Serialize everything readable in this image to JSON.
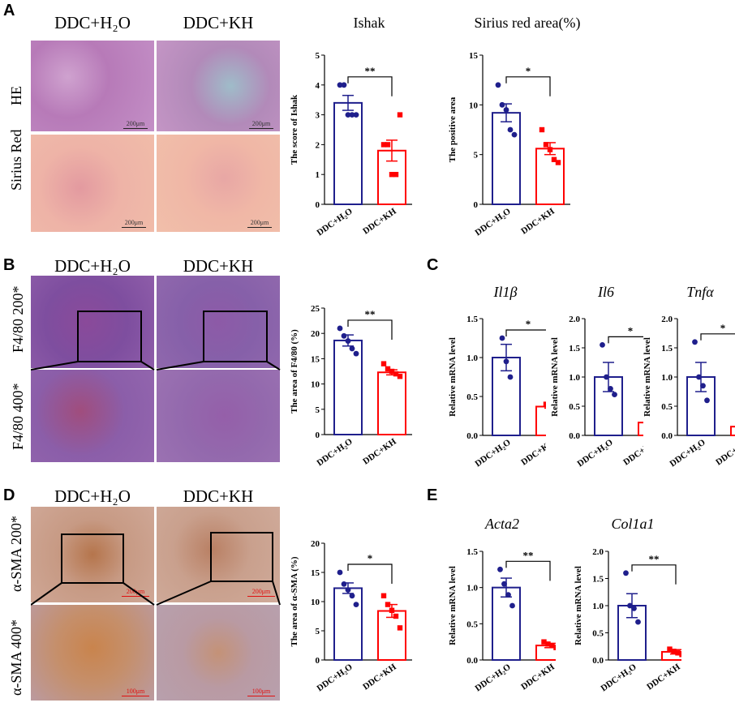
{
  "panels": {
    "A": {
      "label": "A",
      "col_headers": [
        "DDC+H₂O",
        "DDC+KH"
      ],
      "row_labels": [
        "HE",
        "Sirius Red"
      ],
      "scalebars": [
        "200μm",
        "200μm",
        "200μm",
        "200μm"
      ],
      "titles": [
        "Ishak",
        "Sirius red area(%)"
      ]
    },
    "B": {
      "label": "B",
      "col_headers": [
        "DDC+H₂O",
        "DDC+KH"
      ],
      "row_labels": [
        "F4/80 200*",
        "F4/80 400*"
      ]
    },
    "C": {
      "label": "C",
      "titles": [
        "Il1β",
        "Il6",
        "Tnfα"
      ]
    },
    "D": {
      "label": "D",
      "col_headers": [
        "DDC+H₂O",
        "DDC+KH"
      ],
      "row_labels": [
        "α-SMA 200*",
        "α-SMA 400*"
      ],
      "scalebars": [
        "200μm",
        "200μm",
        "100μm",
        "100μm"
      ]
    },
    "E": {
      "label": "E",
      "titles": [
        "Acta2",
        "Col1a1"
      ]
    }
  },
  "colors": {
    "group1": "#1f1f8c",
    "group2": "#ff0000"
  },
  "chart_data": [
    {
      "id": "ishak",
      "type": "bar",
      "categories": [
        "DDC+H₂O",
        "DDC+KH"
      ],
      "values": [
        3.4,
        1.8
      ],
      "errors": [
        0.25,
        0.35
      ],
      "points": [
        [
          4.0,
          4.0,
          3.0,
          3.0,
          3.0
        ],
        [
          2.0,
          2.0,
          1.0,
          1.0,
          3.0
        ]
      ],
      "ylabel": "The score of Ishak",
      "ylim": [
        0,
        5
      ],
      "yticks": [
        0,
        1,
        2,
        3,
        4,
        5
      ],
      "yticklabels": [
        "0",
        "1",
        "2",
        "3",
        "4",
        "5"
      ],
      "significance": "**"
    },
    {
      "id": "sirius",
      "type": "bar",
      "categories": [
        "DDC+H₂O",
        "DDC+KH"
      ],
      "values": [
        9.2,
        5.6
      ],
      "errors": [
        0.9,
        0.6
      ],
      "points": [
        [
          12.0,
          10.0,
          9.5,
          7.5,
          7.0
        ],
        [
          7.5,
          6.0,
          5.5,
          4.5,
          4.2
        ]
      ],
      "ylabel": "The positive area",
      "ylim": [
        0,
        15
      ],
      "yticks": [
        0,
        5,
        10,
        15
      ],
      "yticklabels": [
        "0",
        "5",
        "10",
        "15"
      ],
      "significance": "*"
    },
    {
      "id": "f480",
      "type": "bar",
      "categories": [
        "DDC+H₂O",
        "DDC+KH"
      ],
      "values": [
        18.6,
        12.3
      ],
      "errors": [
        1.1,
        0.5
      ],
      "points": [
        [
          21.0,
          19.5,
          18.5,
          17.0,
          16.0
        ],
        [
          14.0,
          13.0,
          12.5,
          12.0,
          11.5
        ]
      ],
      "ylabel": "The area of F4/80 (%)",
      "ylim": [
        0,
        25
      ],
      "yticks": [
        0,
        5,
        10,
        15,
        20,
        25
      ],
      "yticklabels": [
        "0",
        "5",
        "10",
        "15",
        "20",
        "25"
      ],
      "significance": "**"
    },
    {
      "id": "il1b",
      "type": "bar",
      "categories": [
        "DDC+H₂O",
        "DDC+KH"
      ],
      "values": [
        1.0,
        0.37
      ],
      "errors": [
        0.17,
        0.02
      ],
      "points": [
        [
          1.25,
          0.95,
          0.75
        ],
        [
          0.4,
          0.38,
          0.36
        ]
      ],
      "ylabel": "Relative mRNA level",
      "ylim": [
        0,
        1.5
      ],
      "yticks": [
        0,
        0.5,
        1.0,
        1.5
      ],
      "yticklabels": [
        "0.0",
        "0.5",
        "1.0",
        "1.5"
      ],
      "significance": "*"
    },
    {
      "id": "il6",
      "type": "bar",
      "categories": [
        "DDC+H₂O",
        "DDC+KH"
      ],
      "values": [
        1.0,
        0.22
      ],
      "errors": [
        0.25,
        0.07
      ],
      "points": [
        [
          1.55,
          1.0,
          0.8,
          0.7
        ],
        [
          0.35,
          0.25,
          0.18,
          0.12
        ]
      ],
      "ylabel": "Relative mRNA level",
      "ylim": [
        0,
        2.0
      ],
      "yticks": [
        0,
        0.5,
        1.0,
        1.5,
        2.0
      ],
      "yticklabels": [
        "0.0",
        "0.5",
        "1.0",
        "1.5",
        "2.0"
      ],
      "significance": "*"
    },
    {
      "id": "tnfa",
      "type": "bar",
      "categories": [
        "DDC+H₂O",
        "DDC+KH"
      ],
      "values": [
        1.0,
        0.15
      ],
      "errors": [
        0.25,
        0.08
      ],
      "points": [
        [
          1.6,
          1.0,
          0.85,
          0.6
        ],
        [
          0.35,
          0.12,
          0.08,
          0.05
        ]
      ],
      "ylabel": "Relative mRNA level",
      "ylim": [
        0,
        2.0
      ],
      "yticks": [
        0,
        0.5,
        1.0,
        1.5,
        2.0
      ],
      "yticklabels": [
        "0.0",
        "0.5",
        "1.0",
        "1.5",
        "2.0"
      ],
      "significance": "*"
    },
    {
      "id": "asma",
      "type": "bar",
      "categories": [
        "DDC+H₂O",
        "DDC+KH"
      ],
      "values": [
        12.3,
        8.4
      ],
      "errors": [
        0.9,
        1.1
      ],
      "points": [
        [
          15.0,
          13.0,
          12.0,
          11.0,
          9.5
        ],
        [
          11.0,
          9.5,
          8.5,
          7.5,
          5.5
        ]
      ],
      "ylabel": "The area of α-SMA (%)",
      "ylim": [
        0,
        20
      ],
      "yticks": [
        0,
        5,
        10,
        15,
        20
      ],
      "yticklabels": [
        "0",
        "5",
        "10",
        "15",
        "20"
      ],
      "significance": "*"
    },
    {
      "id": "acta2",
      "type": "bar",
      "categories": [
        "DDC+H₂O",
        "DDC+KH"
      ],
      "values": [
        1.0,
        0.2
      ],
      "errors": [
        0.13,
        0.03
      ],
      "points": [
        [
          1.25,
          1.05,
          0.9,
          0.75
        ],
        [
          0.25,
          0.22,
          0.2,
          0.17
        ]
      ],
      "ylabel": "Relative mRNA level",
      "ylim": [
        0,
        1.5
      ],
      "yticks": [
        0,
        0.5,
        1.0,
        1.5
      ],
      "yticklabels": [
        "0.0",
        "0.5",
        "1.0",
        "1.5"
      ],
      "significance": "**"
    },
    {
      "id": "col1a1",
      "type": "bar",
      "categories": [
        "DDC+H₂O",
        "DDC+KH"
      ],
      "values": [
        1.0,
        0.15
      ],
      "errors": [
        0.22,
        0.04
      ],
      "points": [
        [
          1.6,
          1.0,
          0.95,
          0.7
        ],
        [
          0.2,
          0.16,
          0.13,
          0.1
        ]
      ],
      "ylabel": "Relative mRNA level",
      "ylim": [
        0,
        2.0
      ],
      "yticks": [
        0,
        0.5,
        1.0,
        1.5,
        2.0
      ],
      "yticklabels": [
        "0.0",
        "0.5",
        "1.0",
        "1.5",
        "2.0"
      ],
      "significance": "**"
    }
  ]
}
